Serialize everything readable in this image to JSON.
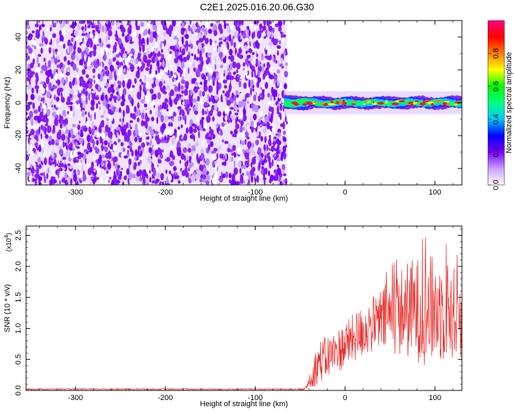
{
  "title": "C2E1.2025.016.20.06.G30",
  "chart_data": [
    {
      "type": "heatmap",
      "xlabel": "Height of straight line (km)",
      "ylabel": "Frequency (Hz)",
      "xlim": [
        -355,
        130
      ],
      "ylim": [
        -50,
        50
      ],
      "xticks": [
        -300,
        -200,
        -100,
        0,
        100
      ],
      "yticks": [
        -40,
        -20,
        0,
        20,
        40
      ],
      "noise_region": [
        -355,
        -65
      ],
      "signal_region": [
        -68,
        130
      ],
      "signal_band_hz": [
        -4,
        4
      ],
      "colorbar": {
        "label": "Normalized spectral amplitude",
        "range": [
          0.0,
          1.0
        ],
        "ticks": [
          "0.0",
          "0.2",
          "0.4",
          "0.6",
          "0.8"
        ],
        "colors": [
          "#ffffff",
          "#c8a0ff",
          "#7a00ff",
          "#0000ff",
          "#00c8ff",
          "#00ff80",
          "#00ff00",
          "#ffff00",
          "#ff8000",
          "#ff0000",
          "#ff0080"
        ]
      }
    },
    {
      "type": "line",
      "xlabel": "Height of straight line (km)",
      "ylabel": "SNR (10 * v/v)",
      "scale_label": "(x10",
      "scale_exp": "4",
      "xlim": [
        -355,
        130
      ],
      "ylim": [
        0,
        2.65
      ],
      "xticks": [
        -300,
        -200,
        -100,
        0,
        100
      ],
      "yticks": [
        "0.0",
        "0.5",
        "1.0",
        "1.5",
        "2.0",
        "2.5"
      ],
      "line_color": "#e8312f",
      "envelope": [
        {
          "x": -355,
          "mean": 0.02,
          "amp": 0.01
        },
        {
          "x": -45,
          "mean": 0.02,
          "amp": 0.01
        },
        {
          "x": -40,
          "mean": 0.15,
          "amp": 0.15
        },
        {
          "x": -30,
          "mean": 0.45,
          "amp": 0.35
        },
        {
          "x": -10,
          "mean": 0.62,
          "amp": 0.35
        },
        {
          "x": 10,
          "mean": 0.85,
          "amp": 0.4
        },
        {
          "x": 30,
          "mean": 1.05,
          "amp": 0.45
        },
        {
          "x": 50,
          "mean": 1.2,
          "amp": 0.6
        },
        {
          "x": 70,
          "mean": 1.3,
          "amp": 0.8
        },
        {
          "x": 90,
          "mean": 1.3,
          "amp": 0.9
        },
        {
          "x": 110,
          "mean": 1.3,
          "amp": 0.85
        },
        {
          "x": 130,
          "mean": 1.2,
          "amp": 0.7
        }
      ]
    }
  ]
}
